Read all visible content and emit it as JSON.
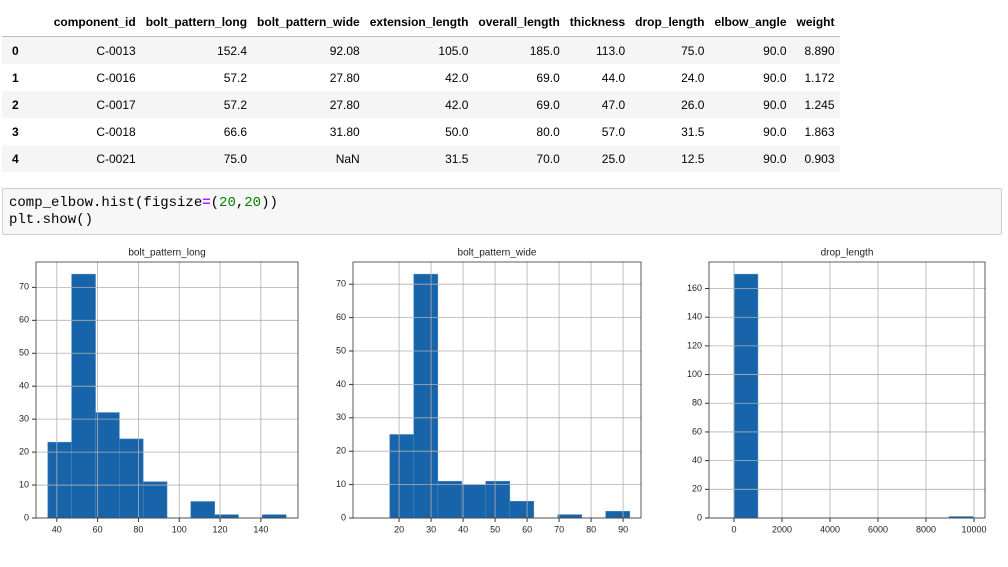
{
  "table": {
    "columns": [
      "component_id",
      "bolt_pattern_long",
      "bolt_pattern_wide",
      "extension_length",
      "overall_length",
      "thickness",
      "drop_length",
      "elbow_angle",
      "weight"
    ],
    "index": [
      "0",
      "1",
      "2",
      "3",
      "4"
    ],
    "rows": [
      [
        "C-0013",
        "152.4",
        "92.08",
        "105.0",
        "185.0",
        "113.0",
        "75.0",
        "90.0",
        "8.890"
      ],
      [
        "C-0016",
        "57.2",
        "27.80",
        "42.0",
        "69.0",
        "44.0",
        "24.0",
        "90.0",
        "1.172"
      ],
      [
        "C-0017",
        "57.2",
        "27.80",
        "42.0",
        "69.0",
        "47.0",
        "26.0",
        "90.0",
        "1.245"
      ],
      [
        "C-0018",
        "66.6",
        "31.80",
        "50.0",
        "80.0",
        "57.0",
        "31.5",
        "90.0",
        "1.863"
      ],
      [
        "C-0021",
        "75.0",
        "NaN",
        "31.5",
        "70.0",
        "25.0",
        "12.5",
        "90.0",
        "0.903"
      ]
    ]
  },
  "code": {
    "lines": [
      [
        "comp_elbow.hist(figsize",
        "=",
        "(",
        "20",
        ",",
        "20",
        "))"
      ],
      [
        "plt.show()"
      ]
    ]
  },
  "chart_data": [
    {
      "type": "histogram",
      "title": "bolt_pattern_long",
      "color": "#1764ab",
      "grid": true,
      "bins": [
        35.6,
        47.28,
        58.96,
        70.64,
        82.32,
        94.0,
        105.68,
        117.36,
        129.04,
        140.72,
        152.4
      ],
      "values": [
        23,
        74,
        32,
        24,
        11,
        0,
        5,
        1,
        0,
        1
      ],
      "xlim": [
        29.8,
        158.2
      ],
      "xticks": [
        40,
        60,
        80,
        100,
        120,
        140
      ],
      "ylim": [
        0,
        77.7
      ],
      "yticks": [
        0,
        10,
        20,
        30,
        40,
        50,
        60,
        70
      ]
    },
    {
      "type": "histogram",
      "title": "bolt_pattern_wide",
      "color": "#1764ab",
      "grid": true,
      "bins": [
        17.1,
        24.6,
        32.1,
        39.59,
        47.09,
        54.59,
        62.09,
        69.59,
        77.08,
        84.58,
        92.08
      ],
      "values": [
        25,
        73,
        11,
        10,
        11,
        5,
        0,
        1,
        0,
        2
      ],
      "xlim": [
        5.6,
        95.6
      ],
      "xticks": [
        20,
        30,
        40,
        50,
        60,
        70,
        80,
        90
      ],
      "ylim": [
        0,
        76.65
      ],
      "yticks": [
        0,
        10,
        20,
        30,
        40,
        50,
        60,
        70
      ]
    },
    {
      "type": "histogram",
      "title": "drop_length",
      "color": "#1764ab",
      "grid": true,
      "bins": [
        0,
        996,
        1992,
        2988,
        3984,
        4980,
        5976,
        6972,
        7968,
        8964,
        9960
      ],
      "values": [
        170,
        0,
        0,
        0,
        0,
        0,
        0,
        0,
        0,
        1
      ],
      "xlim": [
        -1042,
        10458
      ],
      "xticks": [
        0,
        2000,
        4000,
        6000,
        8000,
        10000
      ],
      "ylim": [
        0,
        178.5
      ],
      "yticks": [
        0,
        20,
        40,
        60,
        80,
        100,
        120,
        140,
        160
      ]
    }
  ]
}
